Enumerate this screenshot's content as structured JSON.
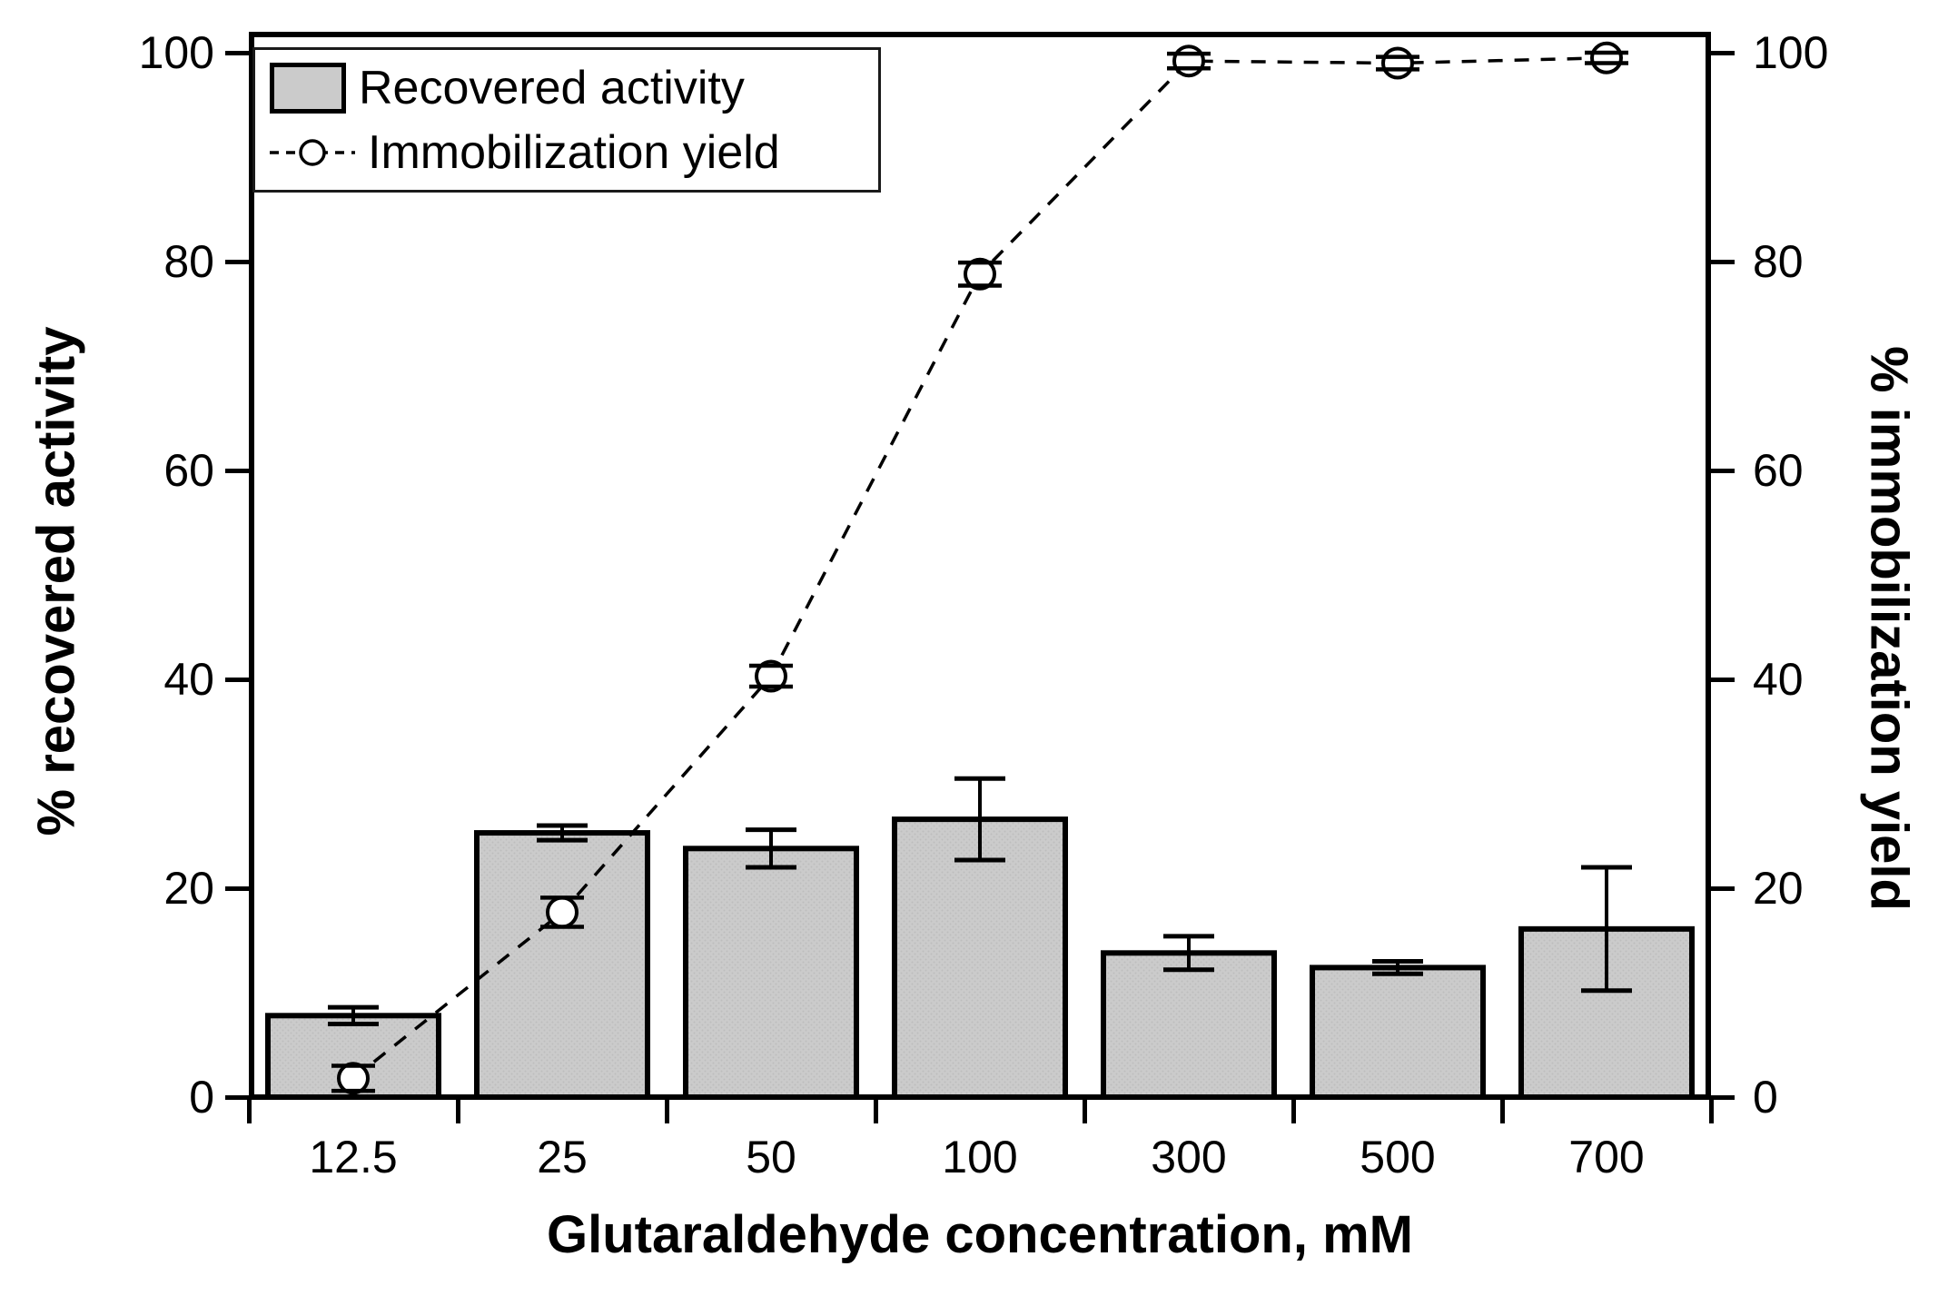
{
  "figure": {
    "legend": {
      "bar_label": "Recovered activity",
      "line_label": "Immobilization yield"
    }
  },
  "chart_data": {
    "type": "bar",
    "subtype": "bar-plus-dashed-line-dual-axis",
    "title": "",
    "xlabel": "Glutaraldehyde concentration, mM",
    "ylabel_left": "% recovered activity",
    "ylabel_right": "% immobilization yield",
    "categories": [
      "12.5",
      "25",
      "50",
      "100",
      "300",
      "500",
      "700"
    ],
    "yticks": [
      0,
      20,
      40,
      60,
      80,
      100
    ],
    "ylim_left": [
      0,
      100
    ],
    "ylim_right": [
      0,
      100
    ],
    "grid": false,
    "legend_position": "top-left-inside",
    "series": [
      {
        "name": "Recovered activity",
        "type": "bar",
        "axis": "left",
        "values": [
          7.8,
          25.3,
          23.8,
          26.6,
          13.8,
          12.4,
          16.1
        ],
        "errors": [
          0.8,
          0.7,
          1.8,
          3.9,
          1.6,
          0.6,
          5.9
        ]
      },
      {
        "name": "Immobilization yield",
        "type": "line",
        "axis": "right",
        "linestyle": "dashed",
        "marker": "open-circle",
        "values": [
          1.8,
          17.7,
          40.3,
          78.8,
          99.2,
          99.0,
          99.5
        ],
        "errors": [
          1.2,
          1.4,
          1.0,
          1.1,
          0.7,
          0.6,
          0.5
        ]
      }
    ],
    "colors": {
      "bar_fill": "#cbcbcb",
      "bar_edge": "#000000",
      "line": "#000000",
      "marker_fill": "#ffffff",
      "marker_edge": "#000000",
      "text": "#000000"
    }
  }
}
